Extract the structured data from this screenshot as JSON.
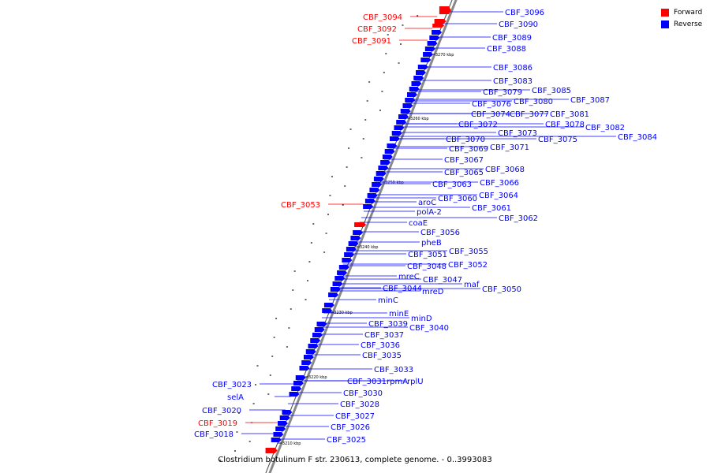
{
  "legend": {
    "forward_label": "Forward",
    "reverse_label": "Reverse",
    "forward_color": "#ff0000",
    "reverse_color": "#0000ff"
  },
  "caption": "Clostridium botulinum F str. 230613, complete genome. - 0..3993083",
  "ticks": [
    "3210 kbp",
    "3220 kbp",
    "3230 kbp",
    "3240 kbp",
    "3250 kbp",
    "3260 kbp",
    "3270 kbp"
  ],
  "genes": [
    {
      "label": "CBF_3094",
      "strand": "forward"
    },
    {
      "label": "CBF_3092",
      "strand": "forward"
    },
    {
      "label": "CBF_3091",
      "strand": "forward"
    },
    {
      "label": "CBF_3096",
      "strand": "reverse"
    },
    {
      "label": "CBF_3090",
      "strand": "reverse"
    },
    {
      "label": "CBF_3089",
      "strand": "reverse"
    },
    {
      "label": "CBF_3088",
      "strand": "reverse"
    },
    {
      "label": "CBF_3086",
      "strand": "reverse"
    },
    {
      "label": "CBF_3083",
      "strand": "reverse"
    },
    {
      "label": "CBF_3085",
      "strand": "reverse"
    },
    {
      "label": "CBF_3087",
      "strand": "reverse"
    },
    {
      "label": "CBF_3079",
      "strand": "reverse"
    },
    {
      "label": "CBF_3080",
      "strand": "reverse"
    },
    {
      "label": "CBF_3076",
      "strand": "reverse"
    },
    {
      "label": "CBF_3074",
      "strand": "reverse"
    },
    {
      "label": "CBF_3077",
      "strand": "reverse"
    },
    {
      "label": "CBF_3081",
      "strand": "reverse"
    },
    {
      "label": "CBF_3078",
      "strand": "reverse"
    },
    {
      "label": "CBF_3082",
      "strand": "reverse"
    },
    {
      "label": "CBF_3084",
      "strand": "reverse"
    },
    {
      "label": "CBF_3072",
      "strand": "reverse"
    },
    {
      "label": "CBF_3073",
      "strand": "reverse"
    },
    {
      "label": "CBF_3075",
      "strand": "reverse"
    },
    {
      "label": "CBF_3070",
      "strand": "reverse"
    },
    {
      "label": "CBF_3069",
      "strand": "reverse"
    },
    {
      "label": "CBF_3071",
      "strand": "reverse"
    },
    {
      "label": "CBF_3067",
      "strand": "reverse"
    },
    {
      "label": "CBF_3065",
      "strand": "reverse"
    },
    {
      "label": "CBF_3068",
      "strand": "reverse"
    },
    {
      "label": "CBF_3066",
      "strand": "reverse"
    },
    {
      "label": "CBF_3063",
      "strand": "reverse"
    },
    {
      "label": "CBF_3064",
      "strand": "reverse"
    },
    {
      "label": "CBF_3060",
      "strand": "reverse"
    },
    {
      "label": "aroC",
      "strand": "reverse"
    },
    {
      "label": "CBF_3061",
      "strand": "reverse"
    },
    {
      "label": "polA-2",
      "strand": "reverse"
    },
    {
      "label": "CBF_3062",
      "strand": "reverse"
    },
    {
      "label": "CBF_3053",
      "strand": "forward"
    },
    {
      "label": "coaE",
      "strand": "reverse"
    },
    {
      "label": "CBF_3056",
      "strand": "reverse"
    },
    {
      "label": "pheB",
      "strand": "reverse"
    },
    {
      "label": "CBF_3055",
      "strand": "reverse"
    },
    {
      "label": "CBF_3051",
      "strand": "reverse"
    },
    {
      "label": "CBF_3052",
      "strand": "reverse"
    },
    {
      "label": "CBF_3048",
      "strand": "reverse"
    },
    {
      "label": "mreC",
      "strand": "reverse"
    },
    {
      "label": "CBF_3047",
      "strand": "reverse"
    },
    {
      "label": "maf",
      "strand": "reverse"
    },
    {
      "label": "CBF_3044",
      "strand": "reverse"
    },
    {
      "label": "mreD",
      "strand": "reverse"
    },
    {
      "label": "CBF_3050",
      "strand": "reverse"
    },
    {
      "label": "minC",
      "strand": "reverse"
    },
    {
      "label": "minE",
      "strand": "reverse"
    },
    {
      "label": "minD",
      "strand": "reverse"
    },
    {
      "label": "CBF_3039",
      "strand": "reverse"
    },
    {
      "label": "CBF_3040",
      "strand": "reverse"
    },
    {
      "label": "CBF_3037",
      "strand": "reverse"
    },
    {
      "label": "CBF_3036",
      "strand": "reverse"
    },
    {
      "label": "CBF_3035",
      "strand": "reverse"
    },
    {
      "label": "CBF_3033",
      "strand": "reverse"
    },
    {
      "label": "CBF_3031",
      "strand": "reverse"
    },
    {
      "label": "rpmA",
      "strand": "reverse"
    },
    {
      "label": "rplU",
      "strand": "reverse"
    },
    {
      "label": "CBF_3030",
      "strand": "reverse"
    },
    {
      "label": "CBF_3028",
      "strand": "reverse"
    },
    {
      "label": "CBF_3027",
      "strand": "reverse"
    },
    {
      "label": "CBF_3026",
      "strand": "reverse"
    },
    {
      "label": "CBF_3025",
      "strand": "reverse"
    },
    {
      "label": "CBF_3023",
      "strand": "reverse"
    },
    {
      "label": "selA",
      "strand": "reverse"
    },
    {
      "label": "CBF_3020",
      "strand": "reverse"
    },
    {
      "label": "CBF_3019",
      "strand": "forward"
    },
    {
      "label": "CBF_3018",
      "strand": "reverse"
    }
  ]
}
